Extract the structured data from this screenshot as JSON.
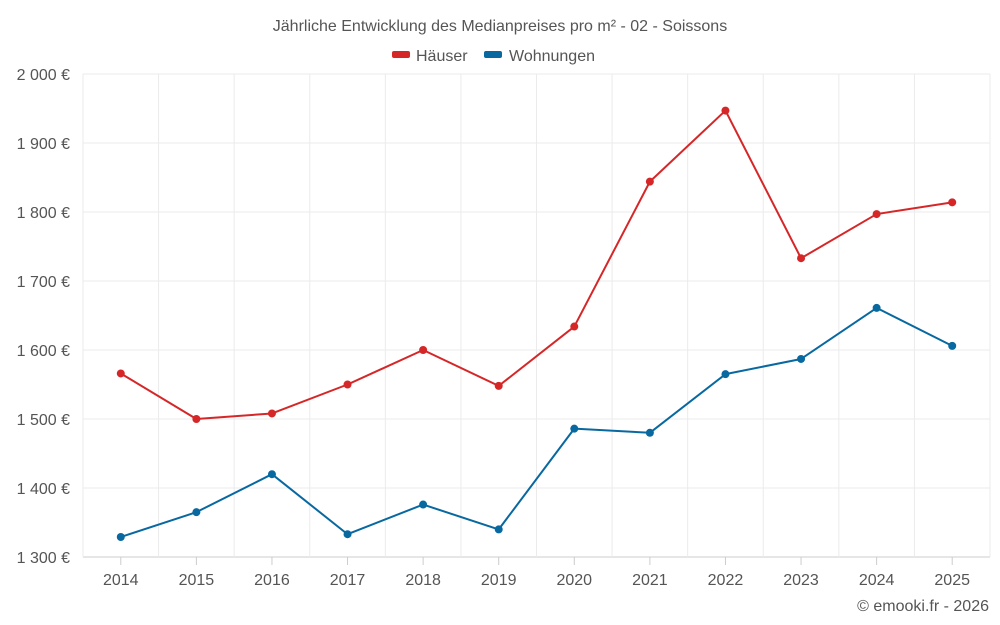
{
  "chart_data": {
    "type": "line",
    "title": "Jährliche Entwicklung des Medianpreises pro m² - 02 - Soissons",
    "categories": [
      "2014",
      "2015",
      "2016",
      "2017",
      "2018",
      "2019",
      "2020",
      "2021",
      "2022",
      "2023",
      "2024",
      "2025"
    ],
    "series": [
      {
        "name": "Häuser",
        "color": "#d62728",
        "values": [
          1566,
          1500,
          1508,
          1550,
          1600,
          1548,
          1634,
          1844,
          1947,
          1733,
          1797,
          1814
        ]
      },
      {
        "name": "Wohnungen",
        "color": "#0868a0",
        "values": [
          1329,
          1365,
          1420,
          1333,
          1376,
          1340,
          1486,
          1480,
          1565,
          1587,
          1661,
          1606
        ]
      }
    ],
    "ylim": [
      1300,
      2000
    ],
    "yticks": [
      1300,
      1400,
      1500,
      1600,
      1700,
      1800,
      1900,
      2000
    ],
    "ytick_labels": [
      "1 300 €",
      "1 400 €",
      "1 500 €",
      "1 600 €",
      "1 700 €",
      "1 800 €",
      "1 900 €",
      "2 000 €"
    ],
    "xlabel": "",
    "ylabel": "",
    "grid": true,
    "legend_position": "top-center"
  },
  "credit": "© emooki.fr - 2026"
}
